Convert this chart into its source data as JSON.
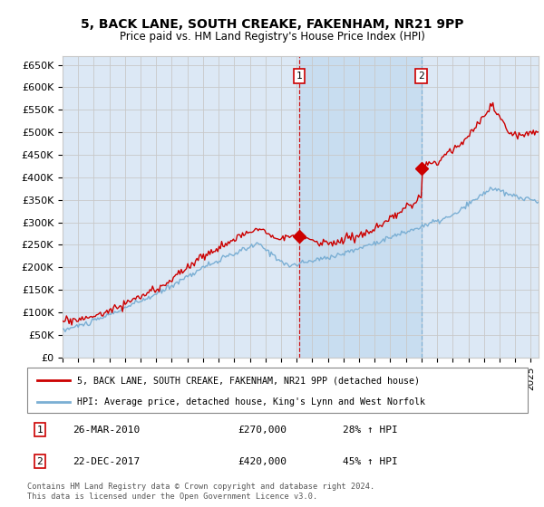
{
  "title": "5, BACK LANE, SOUTH CREAKE, FAKENHAM, NR21 9PP",
  "subtitle": "Price paid vs. HM Land Registry's House Price Index (HPI)",
  "ylim": [
    0,
    670000
  ],
  "yticks": [
    0,
    50000,
    100000,
    150000,
    200000,
    250000,
    300000,
    350000,
    400000,
    450000,
    500000,
    550000,
    600000,
    650000
  ],
  "ytick_labels": [
    "£0",
    "£50K",
    "£100K",
    "£150K",
    "£200K",
    "£250K",
    "£300K",
    "£350K",
    "£400K",
    "£450K",
    "£500K",
    "£550K",
    "£600K",
    "£650K"
  ],
  "xlim_start": 1995.0,
  "xlim_end": 2025.5,
  "sale1_x": 2010.17,
  "sale1_y": 270000,
  "sale1_label": "1",
  "sale1_date": "26-MAR-2010",
  "sale1_price": "£270,000",
  "sale1_hpi": "28% ↑ HPI",
  "sale2_x": 2017.98,
  "sale2_y": 420000,
  "sale2_label": "2",
  "sale2_date": "22-DEC-2017",
  "sale2_price": "£420,000",
  "sale2_hpi": "45% ↑ HPI",
  "line_color_red": "#cc0000",
  "line_color_blue": "#7bafd4",
  "grid_color": "#c8c8c8",
  "plot_bg": "#dce8f5",
  "vline1_color": "#cc0000",
  "vline2_color": "#7bafd4",
  "span_color": "#c8ddf0",
  "legend_label_red": "5, BACK LANE, SOUTH CREAKE, FAKENHAM, NR21 9PP (detached house)",
  "legend_label_blue": "HPI: Average price, detached house, King's Lynn and West Norfolk",
  "footer": "Contains HM Land Registry data © Crown copyright and database right 2024.\nThis data is licensed under the Open Government Licence v3.0."
}
